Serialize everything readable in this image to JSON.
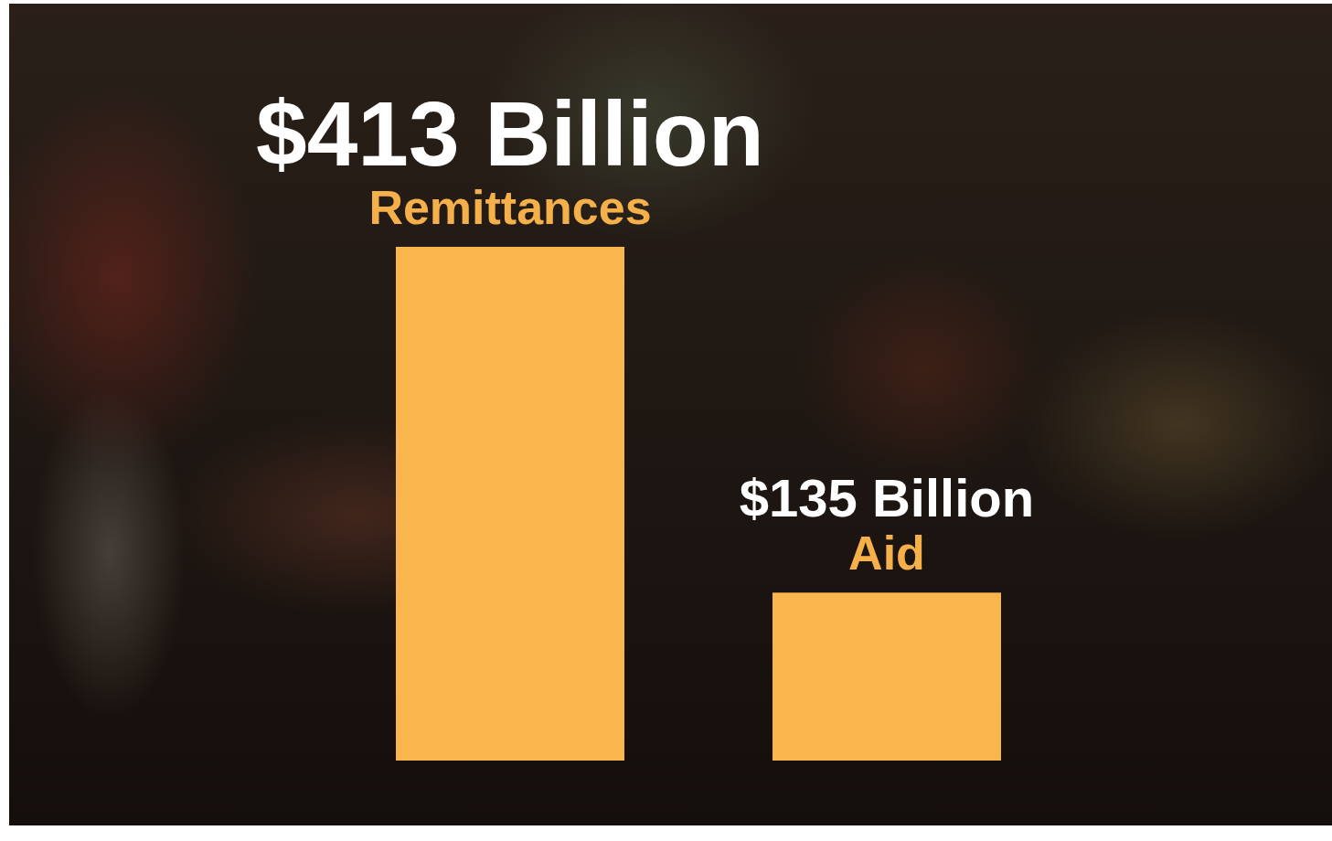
{
  "chart_data": {
    "type": "bar",
    "categories": [
      "Remittances",
      "Aid"
    ],
    "values": [
      413,
      135
    ],
    "value_labels": [
      "$413 Billion",
      "$135 Billion"
    ],
    "color": "#f8b64c",
    "ylim": [
      0,
      413
    ],
    "data_labels": true,
    "tick_labels": false
  }
}
